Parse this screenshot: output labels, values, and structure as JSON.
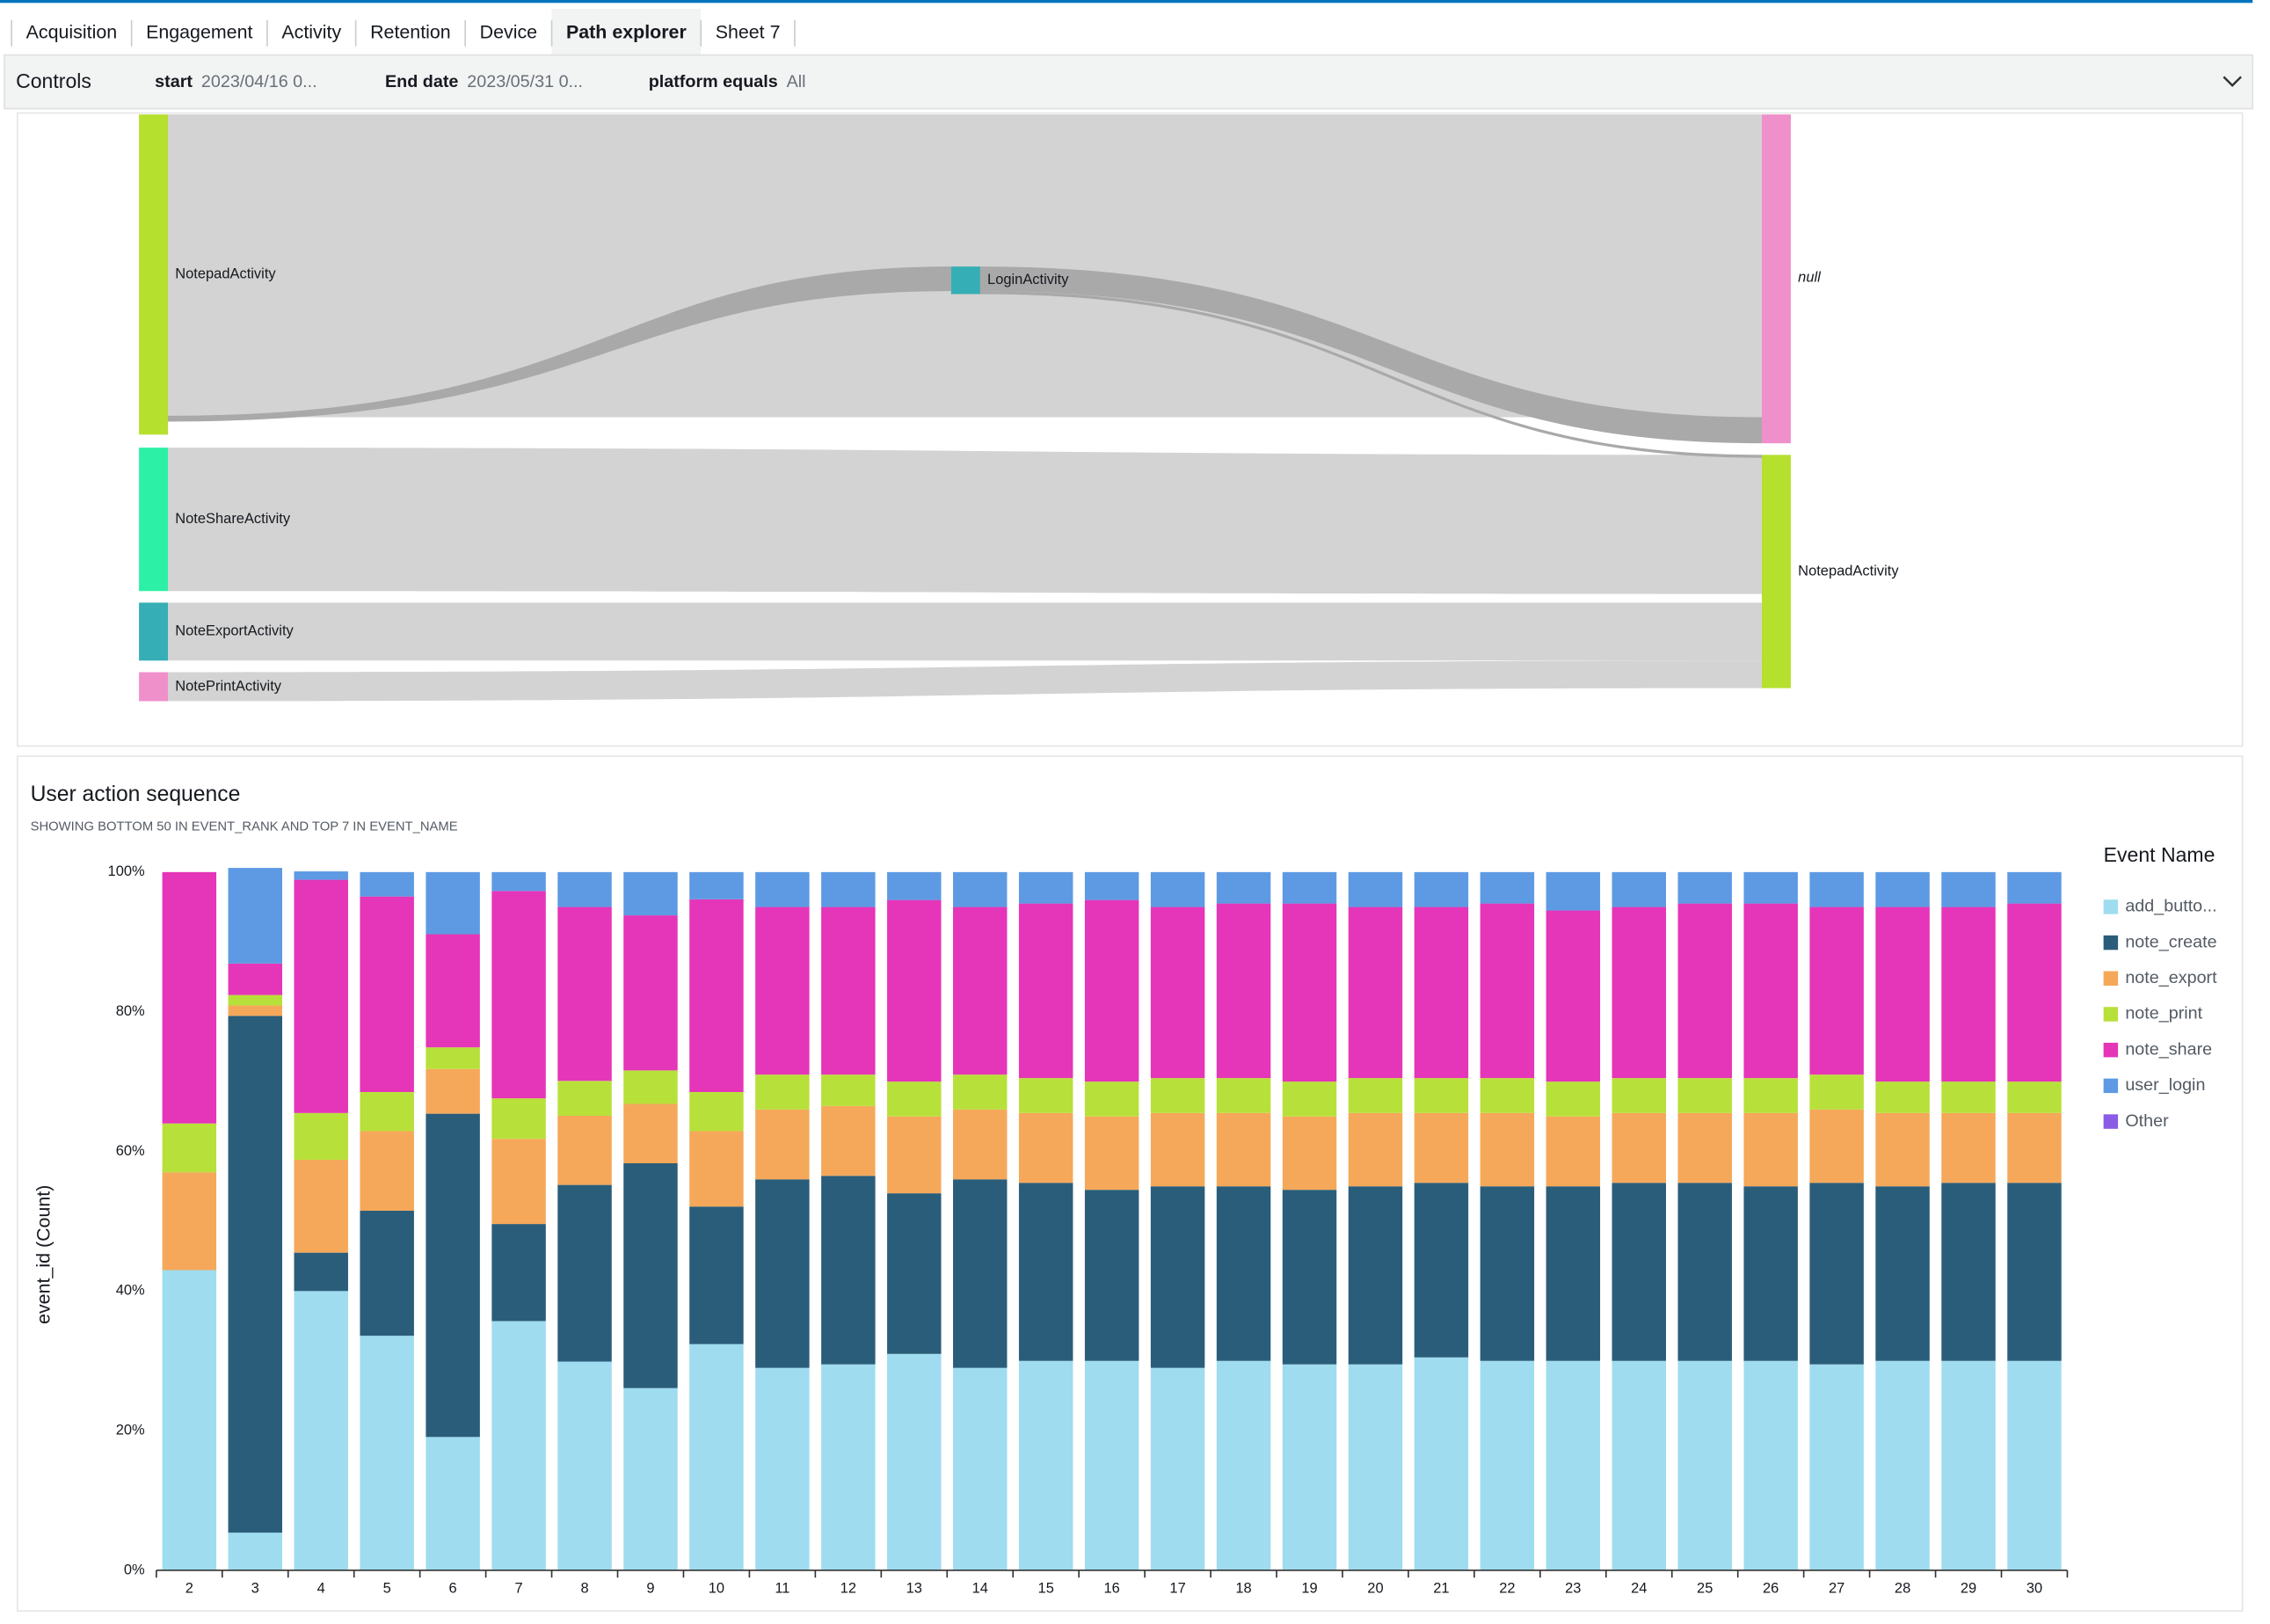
{
  "tabs": [
    "Acquisition",
    "Engagement",
    "Activity",
    "Retention",
    "Device",
    "Path explorer",
    "Sheet 7"
  ],
  "controls": {
    "title": "Controls",
    "filters": [
      {
        "label": "start",
        "value": "2023/04/16 0..."
      },
      {
        "label": "End date",
        "value": "2023/05/31 0..."
      },
      {
        "label": "platform equals",
        "value": "All"
      }
    ]
  },
  "sankey": {
    "nodes": [
      {
        "label": "NotepadActivity"
      },
      {
        "label": "NoteShareActivity"
      },
      {
        "label": "NoteExportActivity"
      },
      {
        "label": "NotePrintActivity"
      },
      {
        "label": "LoginActivity"
      },
      {
        "label": "null"
      },
      {
        "label": "NotepadActivity"
      }
    ]
  },
  "chart_data": {
    "type": "stacked_bar",
    "title": "User action sequence",
    "subtitle": "SHOWING BOTTOM 50 IN EVENT_RANK AND TOP 7 IN EVENT_NAME",
    "y_label": "event_id (Count)",
    "legend_title": "Event Name",
    "legend_position": "right",
    "categories": [
      "2",
      "3",
      "4",
      "5",
      "6",
      "7",
      "8",
      "9",
      "10",
      "11",
      "12",
      "13",
      "14",
      "15",
      "16",
      "17",
      "18",
      "19",
      "20",
      "21",
      "22",
      "23",
      "24",
      "25",
      "26",
      "27",
      "28",
      "29",
      "30"
    ],
    "ylim": [
      0,
      100
    ],
    "yticks": [
      {
        "value": 0,
        "label": "0%"
      },
      {
        "value": 20,
        "label": "20%"
      },
      {
        "value": 40,
        "label": "40%"
      },
      {
        "value": 60,
        "label": "60%"
      },
      {
        "value": 80,
        "label": "80%"
      },
      {
        "value": 100,
        "label": "100%"
      }
    ],
    "series": [
      {
        "name": "add_butto...",
        "color": "#9fdcef",
        "values": [
          43,
          5.4,
          40,
          33.6,
          19.1,
          35.7,
          29.9,
          26.1,
          32.4,
          29,
          29.5,
          31,
          29,
          30,
          30,
          29,
          30,
          29.5,
          29.5,
          30.5,
          30,
          30,
          30,
          30,
          30,
          29.5,
          30,
          30,
          30
        ]
      },
      {
        "name": "note_create",
        "color": "#2a5d7a",
        "values": [
          0,
          74,
          5.5,
          17.9,
          46.3,
          13.9,
          25.3,
          32.2,
          19.7,
          27,
          27,
          23,
          27,
          25.5,
          24.5,
          26,
          25,
          25,
          25.5,
          25,
          25,
          25,
          25.5,
          25.5,
          25,
          26,
          25,
          25.5,
          25.5
        ]
      },
      {
        "name": "note_export",
        "color": "#f5a85a",
        "values": [
          14,
          1.5,
          13.3,
          11.4,
          6.4,
          12.2,
          9.9,
          8.5,
          10.8,
          10,
          10,
          11,
          10,
          10,
          10.5,
          10.5,
          10.5,
          10.5,
          10.5,
          10,
          10.5,
          10,
          10,
          10,
          10.5,
          10.5,
          10.5,
          10,
          10
        ]
      },
      {
        "name": "note_print",
        "color": "#b8e03a",
        "values": [
          7,
          1.5,
          6.7,
          5.6,
          3.1,
          5.8,
          5,
          4.8,
          5.6,
          5,
          4.5,
          5,
          5,
          5,
          5,
          5,
          5,
          5,
          5,
          5,
          5,
          5,
          5,
          5,
          5,
          5,
          4.5,
          4.5,
          4.5
        ]
      },
      {
        "name": "note_share",
        "color": "#e535b8",
        "values": [
          36,
          4.5,
          33.4,
          28,
          16.2,
          29.7,
          24.9,
          22.2,
          27.6,
          24,
          24,
          26,
          24,
          25,
          26,
          24.5,
          25,
          25.5,
          24.5,
          24.5,
          25,
          24.5,
          24.5,
          25,
          25,
          24,
          25,
          25,
          25.5
        ]
      },
      {
        "name": "user_login",
        "color": "#5d9ae3",
        "values": [
          0,
          13.7,
          1.2,
          3.5,
          8.9,
          2.7,
          5,
          6.2,
          3.9,
          5,
          5,
          4,
          5,
          4.5,
          4,
          5,
          4.5,
          4.5,
          5,
          5,
          4.5,
          5.5,
          5,
          4.5,
          4.5,
          5,
          5,
          5,
          4.5
        ]
      },
      {
        "name": "Other",
        "color": "#8b5ce6",
        "values": [
          0,
          0,
          0,
          0,
          0,
          0,
          0,
          0,
          0,
          0,
          0,
          0,
          0,
          0,
          0,
          0,
          0,
          0,
          0,
          0,
          0,
          0,
          0,
          0,
          0,
          0,
          0,
          0,
          0
        ]
      }
    ]
  }
}
